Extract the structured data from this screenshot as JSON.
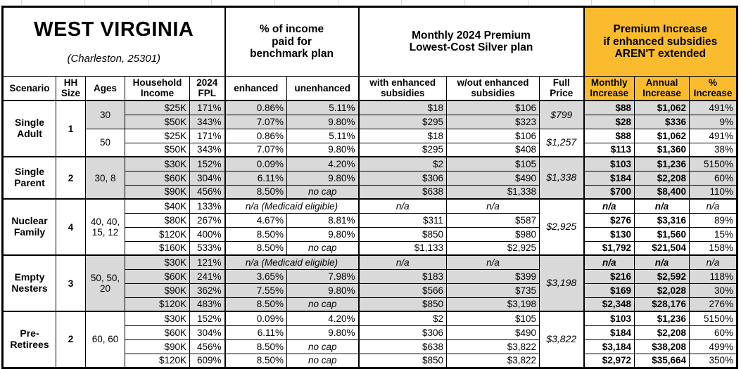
{
  "title": "WEST VIRGINIA",
  "subtitle": "(Charleston, 25301)",
  "colors": {
    "accent_orange": "#FABC2E",
    "shade_gray": "#D9D9D9"
  },
  "group_headers": {
    "income_pct": "% of income\npaid for\nbenchmark plan",
    "premium": "Monthly 2024 Premium\nLowest-Cost Silver plan",
    "increase": "Premium Increase\nif enhanced subsidies\nAREN'T extended"
  },
  "columns": {
    "scenario": "Scenario",
    "hh": "HH\nSize",
    "ages": "Ages",
    "income": "Household\nIncome",
    "fpl": "2024\nFPL",
    "enhanced": "enhanced",
    "unenhanced": "unenhanced",
    "with_sub": "with enhanced\nsubsidies",
    "wout_sub": "w/out enhanced\nsubsidies",
    "full": "Full\nPrice",
    "monthly": "Monthly\nIncrease",
    "annual": "Annual\nIncrease",
    "pct": "%\nIncrease"
  },
  "groups": [
    {
      "scenario": "Single Adult",
      "hh_size": "1",
      "subgroups": [
        {
          "ages": "30",
          "shade": true,
          "full_price": "$799",
          "rows": [
            {
              "income": "$25K",
              "fpl": "171%",
              "enhanced": "0.86%",
              "unenhanced": "5.11%",
              "with_sub": "$18",
              "wout_sub": "$106",
              "monthly": "$88",
              "annual": "$1,062",
              "pct": "491%"
            },
            {
              "income": "$50K",
              "fpl": "343%",
              "enhanced": "7.07%",
              "unenhanced": "9.80%",
              "with_sub": "$295",
              "wout_sub": "$323",
              "monthly": "$28",
              "annual": "$336",
              "pct": "9%"
            }
          ]
        },
        {
          "ages": "50",
          "shade": false,
          "full_price": "$1,257",
          "rows": [
            {
              "income": "$25K",
              "fpl": "171%",
              "enhanced": "0.86%",
              "unenhanced": "5.11%",
              "with_sub": "$18",
              "wout_sub": "$106",
              "monthly": "$88",
              "annual": "$1,062",
              "pct": "491%"
            },
            {
              "income": "$50K",
              "fpl": "343%",
              "enhanced": "7.07%",
              "unenhanced": "9.80%",
              "with_sub": "$295",
              "wout_sub": "$408",
              "monthly": "$113",
              "annual": "$1,360",
              "pct": "38%"
            }
          ]
        }
      ]
    },
    {
      "scenario": "Single Parent",
      "hh_size": "2",
      "subgroups": [
        {
          "ages": "30, 8",
          "shade": true,
          "full_price": "$1,338",
          "rows": [
            {
              "income": "$30K",
              "fpl": "152%",
              "enhanced": "0.09%",
              "unenhanced": "4.20%",
              "with_sub": "$2",
              "wout_sub": "$105",
              "monthly": "$103",
              "annual": "$1,236",
              "pct": "5150%"
            },
            {
              "income": "$60K",
              "fpl": "304%",
              "enhanced": "6.11%",
              "unenhanced": "9.80%",
              "with_sub": "$306",
              "wout_sub": "$490",
              "monthly": "$184",
              "annual": "$2,208",
              "pct": "60%"
            },
            {
              "income": "$90K",
              "fpl": "456%",
              "enhanced": "8.50%",
              "unenhanced": "no cap",
              "with_sub": "$638",
              "wout_sub": "$1,338",
              "monthly": "$700",
              "annual": "$8,400",
              "pct": "110%"
            }
          ]
        }
      ]
    },
    {
      "scenario": "Nuclear Family",
      "hh_size": "4",
      "subgroups": [
        {
          "ages": "40, 40,\n15, 12",
          "shade": false,
          "full_price": "$2,925",
          "rows": [
            {
              "income": "$40K",
              "fpl": "133%",
              "medicaid": "n/a (Medicaid eligible)",
              "with_sub": "n/a",
              "wout_sub": "n/a",
              "monthly": "n/a",
              "annual": "n/a",
              "pct": "n/a"
            },
            {
              "income": "$80K",
              "fpl": "267%",
              "enhanced": "4.67%",
              "unenhanced": "8.81%",
              "with_sub": "$311",
              "wout_sub": "$587",
              "monthly": "$276",
              "annual": "$3,316",
              "pct": "89%"
            },
            {
              "income": "$120K",
              "fpl": "400%",
              "enhanced": "8.50%",
              "unenhanced": "9.80%",
              "with_sub": "$850",
              "wout_sub": "$980",
              "monthly": "$130",
              "annual": "$1,560",
              "pct": "15%"
            },
            {
              "income": "$160K",
              "fpl": "533%",
              "enhanced": "8.50%",
              "unenhanced": "no cap",
              "with_sub": "$1,133",
              "wout_sub": "$2,925",
              "monthly": "$1,792",
              "annual": "$21,504",
              "pct": "158%"
            }
          ]
        }
      ]
    },
    {
      "scenario": "Empty Nesters",
      "hh_size": "3",
      "subgroups": [
        {
          "ages": "50, 50,\n20",
          "shade": true,
          "full_price": "$3,198",
          "rows": [
            {
              "income": "$30K",
              "fpl": "121%",
              "medicaid": "n/a (Medicaid eligible)",
              "with_sub": "n/a",
              "wout_sub": "n/a",
              "monthly": "n/a",
              "annual": "n/a",
              "pct": "n/a"
            },
            {
              "income": "$60K",
              "fpl": "241%",
              "enhanced": "3.65%",
              "unenhanced": "7.98%",
              "with_sub": "$183",
              "wout_sub": "$399",
              "monthly": "$216",
              "annual": "$2,592",
              "pct": "118%"
            },
            {
              "income": "$90K",
              "fpl": "362%",
              "enhanced": "7.55%",
              "unenhanced": "9.80%",
              "with_sub": "$566",
              "wout_sub": "$735",
              "monthly": "$169",
              "annual": "$2,028",
              "pct": "30%"
            },
            {
              "income": "$120K",
              "fpl": "483%",
              "enhanced": "8.50%",
              "unenhanced": "no cap",
              "with_sub": "$850",
              "wout_sub": "$3,198",
              "monthly": "$2,348",
              "annual": "$28,176",
              "pct": "276%"
            }
          ]
        }
      ]
    },
    {
      "scenario": "Pre-Retirees",
      "hh_size": "2",
      "subgroups": [
        {
          "ages": "60, 60",
          "shade": false,
          "full_price": "$3,822",
          "rows": [
            {
              "income": "$30K",
              "fpl": "152%",
              "enhanced": "0.09%",
              "unenhanced": "4.20%",
              "with_sub": "$2",
              "wout_sub": "$105",
              "monthly": "$103",
              "annual": "$1,236",
              "pct": "5150%"
            },
            {
              "income": "$60K",
              "fpl": "304%",
              "enhanced": "6.11%",
              "unenhanced": "9.80%",
              "with_sub": "$306",
              "wout_sub": "$490",
              "monthly": "$184",
              "annual": "$2,208",
              "pct": "60%"
            },
            {
              "income": "$90K",
              "fpl": "456%",
              "enhanced": "8.50%",
              "unenhanced": "no cap",
              "with_sub": "$638",
              "wout_sub": "$3,822",
              "monthly": "$3,184",
              "annual": "$38,208",
              "pct": "499%"
            },
            {
              "income": "$120K",
              "fpl": "609%",
              "enhanced": "8.50%",
              "unenhanced": "no cap",
              "with_sub": "$850",
              "wout_sub": "$3,822",
              "monthly": "$2,972",
              "annual": "$35,664",
              "pct": "350%"
            }
          ]
        }
      ]
    }
  ],
  "chart_data": {
    "type": "table",
    "title": "WEST VIRGINIA (Charleston, 25301)",
    "column_groups": [
      "% of income paid for benchmark plan",
      "Monthly 2024 Premium Lowest-Cost Silver plan",
      "Premium Increase if enhanced subsidies AREN'T extended"
    ],
    "columns": [
      "Scenario",
      "HH Size",
      "Ages",
      "Household Income",
      "2024 FPL",
      "enhanced",
      "unenhanced",
      "with enhanced subsidies",
      "w/out enhanced subsidies",
      "Full Price",
      "Monthly Increase",
      "Annual Increase",
      "% Increase"
    ],
    "rows": [
      [
        "Single Adult",
        "1",
        "30",
        "$25K",
        "171%",
        "0.86%",
        "5.11%",
        "$18",
        "$106",
        "$799",
        "$88",
        "$1,062",
        "491%"
      ],
      [
        "Single Adult",
        "1",
        "30",
        "$50K",
        "343%",
        "7.07%",
        "9.80%",
        "$295",
        "$323",
        "$799",
        "$28",
        "$336",
        "9%"
      ],
      [
        "Single Adult",
        "1",
        "50",
        "$25K",
        "171%",
        "0.86%",
        "5.11%",
        "$18",
        "$106",
        "$1,257",
        "$88",
        "$1,062",
        "491%"
      ],
      [
        "Single Adult",
        "1",
        "50",
        "$50K",
        "343%",
        "7.07%",
        "9.80%",
        "$295",
        "$408",
        "$1,257",
        "$113",
        "$1,360",
        "38%"
      ],
      [
        "Single Parent",
        "2",
        "30, 8",
        "$30K",
        "152%",
        "0.09%",
        "4.20%",
        "$2",
        "$105",
        "$1,338",
        "$103",
        "$1,236",
        "5150%"
      ],
      [
        "Single Parent",
        "2",
        "30, 8",
        "$60K",
        "304%",
        "6.11%",
        "9.80%",
        "$306",
        "$490",
        "$1,338",
        "$184",
        "$2,208",
        "60%"
      ],
      [
        "Single Parent",
        "2",
        "30, 8",
        "$90K",
        "456%",
        "8.50%",
        "no cap",
        "$638",
        "$1,338",
        "$1,338",
        "$700",
        "$8,400",
        "110%"
      ],
      [
        "Nuclear Family",
        "4",
        "40, 40, 15, 12",
        "$40K",
        "133%",
        "n/a (Medicaid eligible)",
        "n/a (Medicaid eligible)",
        "n/a",
        "n/a",
        "$2,925",
        "n/a",
        "n/a",
        "n/a"
      ],
      [
        "Nuclear Family",
        "4",
        "40, 40, 15, 12",
        "$80K",
        "267%",
        "4.67%",
        "8.81%",
        "$311",
        "$587",
        "$2,925",
        "$276",
        "$3,316",
        "89%"
      ],
      [
        "Nuclear Family",
        "4",
        "40, 40, 15, 12",
        "$120K",
        "400%",
        "8.50%",
        "9.80%",
        "$850",
        "$980",
        "$2,925",
        "$130",
        "$1,560",
        "15%"
      ],
      [
        "Nuclear Family",
        "4",
        "40, 40, 15, 12",
        "$160K",
        "533%",
        "8.50%",
        "no cap",
        "$1,133",
        "$2,925",
        "$2,925",
        "$1,792",
        "$21,504",
        "158%"
      ],
      [
        "Empty Nesters",
        "3",
        "50, 50, 20",
        "$30K",
        "121%",
        "n/a (Medicaid eligible)",
        "n/a (Medicaid eligible)",
        "n/a",
        "n/a",
        "$3,198",
        "n/a",
        "n/a",
        "n/a"
      ],
      [
        "Empty Nesters",
        "3",
        "50, 50, 20",
        "$60K",
        "241%",
        "3.65%",
        "7.98%",
        "$183",
        "$399",
        "$3,198",
        "$216",
        "$2,592",
        "118%"
      ],
      [
        "Empty Nesters",
        "3",
        "50, 50, 20",
        "$90K",
        "362%",
        "7.55%",
        "9.80%",
        "$566",
        "$735",
        "$3,198",
        "$169",
        "$2,028",
        "30%"
      ],
      [
        "Empty Nesters",
        "3",
        "50, 50, 20",
        "$120K",
        "483%",
        "8.50%",
        "no cap",
        "$850",
        "$3,198",
        "$3,198",
        "$2,348",
        "$28,176",
        "276%"
      ],
      [
        "Pre-Retirees",
        "2",
        "60, 60",
        "$30K",
        "152%",
        "0.09%",
        "4.20%",
        "$2",
        "$105",
        "$3,822",
        "$103",
        "$1,236",
        "5150%"
      ],
      [
        "Pre-Retirees",
        "2",
        "60, 60",
        "$60K",
        "304%",
        "6.11%",
        "9.80%",
        "$306",
        "$490",
        "$3,822",
        "$184",
        "$2,208",
        "60%"
      ],
      [
        "Pre-Retirees",
        "2",
        "60, 60",
        "$90K",
        "456%",
        "8.50%",
        "no cap",
        "$638",
        "$3,822",
        "$3,822",
        "$3,184",
        "$38,208",
        "499%"
      ],
      [
        "Pre-Retirees",
        "2",
        "60, 60",
        "$120K",
        "609%",
        "8.50%",
        "no cap",
        "$850",
        "$3,822",
        "$3,822",
        "$2,972",
        "$35,664",
        "350%"
      ]
    ]
  }
}
